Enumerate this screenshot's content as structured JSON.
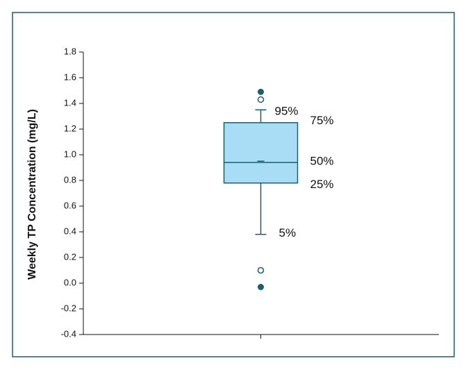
{
  "chart_data": {
    "type": "box",
    "y_label": "Weekly TP Concentration (mg/L)",
    "categories": [
      null
    ],
    "box": {
      "whisker_low": 0.38,
      "q1": 0.78,
      "median": 0.94,
      "mean": 0.95,
      "q3": 1.25,
      "whisker_high": 1.35
    },
    "outliers": [
      1.43,
      0.1
    ],
    "extremes": [
      1.49,
      -0.03
    ],
    "annotations": [
      "95%",
      "75%",
      "50%",
      "25%",
      "5%"
    ],
    "color": "#1b5f6e",
    "box_fill": "#a9dcf5",
    "ylim": [
      -0.4,
      1.8
    ],
    "yticks": [
      -0.4,
      -0.2,
      {
        "value": 0.0,
        "label": "0.0"
      },
      0.2,
      0.4,
      0.6,
      0.8,
      {
        "value": 1.0,
        "label": "1.0"
      },
      1.2,
      1.4,
      1.6,
      1.8
    ],
    "grid": false
  }
}
